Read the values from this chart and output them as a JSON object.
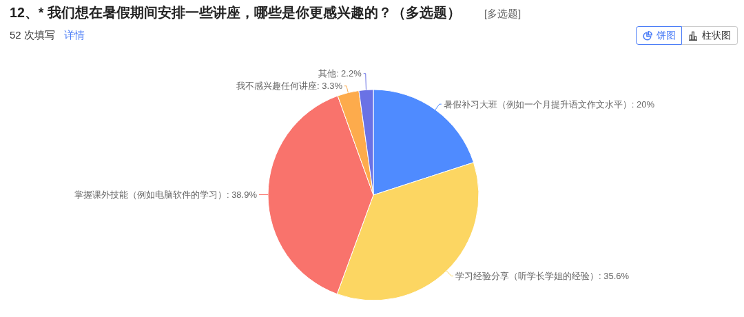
{
  "chart_data": {
    "type": "pie",
    "title": "12、* 我们想在暑假期间安排一些讲座，哪些是你更感兴趣的？（多选题）",
    "subtitle": "52 次填写",
    "annotations": [
      "[多选题]",
      "详情",
      "饼图",
      "柱状图"
    ],
    "categories": [
      "暑假补习大班（例如一个月提升语文作文水平）",
      "学习经验分享（听学长学姐的经验）",
      "掌握课外技能（例如电脑软件的学习）",
      "我不感兴趣任何讲座",
      "其他"
    ],
    "values": [
      20,
      35.6,
      38.9,
      3.3,
      2.2
    ],
    "colors": [
      "#4f8bff",
      "#fcd662",
      "#f9736c",
      "#fdab4c",
      "#6a72e5"
    ],
    "value_labels": [
      "20%",
      "35.6%",
      "38.9%",
      "3.3%",
      "2.2%"
    ]
  }
}
